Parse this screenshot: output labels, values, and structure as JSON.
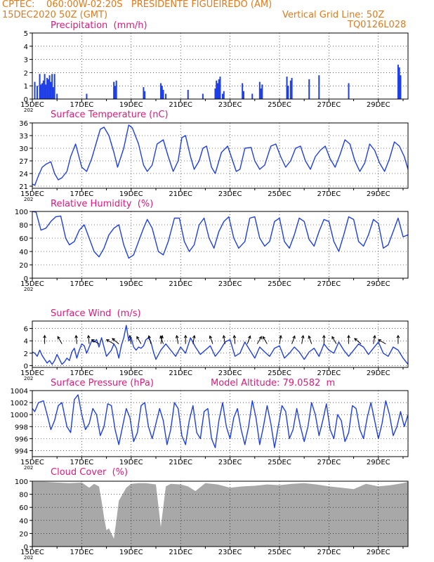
{
  "header": {
    "line1": "CPTEC:    060:00W-02:20S   PRESIDENTE FIGUEIREDO (AM)",
    "line2_left": "15DEC2020 50Z (GMT)",
    "line2_right": "Vertical Grid Line: 50Z",
    "line3_right": "TQ0126L028"
  },
  "colors": {
    "header": "#e07a1a",
    "panel_title": "#e0197a",
    "line": "#1f3fe6",
    "cloud": "#a8a8a8",
    "arrow": "#000000"
  },
  "x_axis": {
    "ticks": [
      "15DEC",
      "17DEC",
      "19DEC",
      "21DEC",
      "23DEC",
      "25DEC",
      "27DEC",
      "29DEC"
    ],
    "year_fragment": "202",
    "range_days": [
      0,
      15.2
    ]
  },
  "chart_data": [
    {
      "id": "precip",
      "type": "bar",
      "title": "Precipitation  (mm/h)",
      "ylim": [
        0,
        5
      ],
      "yticks": [
        "0",
        "1",
        "2",
        "3",
        "4",
        "5"
      ],
      "x": [
        0.1,
        0.2,
        0.3,
        0.35,
        0.4,
        0.45,
        0.5,
        0.55,
        0.6,
        0.65,
        0.7,
        0.75,
        0.8,
        0.85,
        0.9,
        1.0,
        2.2,
        3.3,
        3.35,
        3.4,
        4.5,
        4.55,
        5.2,
        5.25,
        5.3,
        5.4,
        6.3,
        6.9,
        7.4,
        7.45,
        7.5,
        7.55,
        7.6,
        7.7,
        7.75,
        8.5,
        8.55,
        8.9,
        9.2,
        9.25,
        9.3,
        10.3,
        10.35,
        10.45,
        10.5,
        11.2,
        11.6,
        12.8
      ],
      "values": [
        1.3,
        1.0,
        1.9,
        1.1,
        1.2,
        1.4,
        1.9,
        1.1,
        1.6,
        1.5,
        1.8,
        1.3,
        1.9,
        0.9,
        1.9,
        0.4,
        0.4,
        1.3,
        1.0,
        1.4,
        0.9,
        0.6,
        1.2,
        1.0,
        0.7,
        0.4,
        0.7,
        0.4,
        0.8,
        1.4,
        1.2,
        1.5,
        1.7,
        0.4,
        0.6,
        1.2,
        0.6,
        0.4,
        1.3,
        0.8,
        1.1,
        1.7,
        1.0,
        1.4,
        1.6,
        1.5,
        1.8,
        1.2
      ],
      "values_late": {
        "x": [
          14.8,
          14.85,
          14.9
        ],
        "values": [
          2.6,
          2.4,
          1.8
        ]
      }
    },
    {
      "id": "temp",
      "type": "line",
      "title": "Surface Temperature (nC)",
      "ylim": [
        20.5,
        36
      ],
      "yticks": [
        "21",
        "24",
        "27",
        "30",
        "33",
        "36"
      ],
      "x": [
        0,
        0.1,
        0.25,
        0.4,
        0.55,
        0.75,
        0.9,
        1.05,
        1.2,
        1.4,
        1.55,
        1.75,
        2.0,
        2.2,
        2.4,
        2.6,
        2.75,
        2.9,
        3.1,
        3.3,
        3.45,
        3.7,
        3.9,
        4.05,
        4.3,
        4.5,
        4.65,
        4.85,
        5.05,
        5.3,
        5.5,
        5.7,
        5.9,
        6.05,
        6.2,
        6.4,
        6.55,
        6.75,
        6.9,
        7.05,
        7.25,
        7.4,
        7.65,
        7.9,
        8.05,
        8.25,
        8.4,
        8.6,
        8.85,
        9.0,
        9.2,
        9.4,
        9.65,
        9.85,
        10.05,
        10.25,
        10.45,
        10.65,
        10.85,
        11.05,
        11.25,
        11.45,
        11.65,
        11.85,
        12.05,
        12.25,
        12.45,
        12.65,
        12.85,
        13.05,
        13.25,
        13.45,
        13.65,
        13.85,
        14.05,
        14.25,
        14.45,
        14.65,
        14.85,
        15.05,
        15.2
      ],
      "values": [
        21.5,
        21.2,
        23.5,
        25.5,
        26.2,
        26.8,
        24.0,
        22.5,
        23.0,
        24.5,
        28.0,
        31.0,
        25.5,
        24.5,
        27.5,
        31.5,
        34.5,
        35.0,
        33.0,
        29.0,
        25.5,
        30.0,
        35.5,
        34.8,
        31.0,
        26.0,
        24.5,
        26.0,
        31.0,
        32.0,
        28.0,
        24.5,
        27.0,
        32.5,
        33.0,
        28.0,
        25.0,
        27.0,
        30.0,
        30.5,
        25.5,
        24.0,
        29.0,
        30.5,
        28.0,
        24.5,
        25.0,
        30.0,
        30.2,
        27.0,
        25.0,
        26.0,
        30.5,
        31.0,
        28.0,
        25.5,
        27.0,
        30.0,
        30.5,
        27.0,
        25.0,
        28.0,
        29.5,
        30.5,
        27.5,
        25.5,
        28.5,
        32.0,
        31.0,
        27.0,
        24.5,
        26.5,
        31.0,
        29.5,
        26.5,
        24.5,
        27.5,
        31.5,
        30.5,
        28.0,
        25.0
      ]
    },
    {
      "id": "rh",
      "type": "line",
      "title": "Relative Humidity  (%)",
      "ylim": [
        0,
        100
      ],
      "yticks": [
        "0",
        "20",
        "40",
        "60",
        "80",
        "100"
      ],
      "x": [
        0,
        0.15,
        0.35,
        0.55,
        0.75,
        0.95,
        1.15,
        1.35,
        1.5,
        1.7,
        1.9,
        2.1,
        2.3,
        2.5,
        2.7,
        2.9,
        3.1,
        3.3,
        3.5,
        3.7,
        3.9,
        4.1,
        4.3,
        4.5,
        4.65,
        4.85,
        5.1,
        5.3,
        5.5,
        5.75,
        5.95,
        6.15,
        6.35,
        6.55,
        6.75,
        6.95,
        7.15,
        7.35,
        7.55,
        7.75,
        7.95,
        8.15,
        8.35,
        8.6,
        8.8,
        9.0,
        9.2,
        9.4,
        9.6,
        9.8,
        10.0,
        10.2,
        10.4,
        10.6,
        10.8,
        11.0,
        11.2,
        11.4,
        11.6,
        11.8,
        12.0,
        12.2,
        12.4,
        12.6,
        12.8,
        13.0,
        13.2,
        13.4,
        13.6,
        13.8,
        14.0,
        14.2,
        14.4,
        14.6,
        14.8,
        15.0,
        15.2
      ],
      "values": [
        100,
        99,
        72,
        75,
        85,
        92,
        93,
        60,
        50,
        55,
        72,
        80,
        60,
        40,
        32,
        45,
        65,
        75,
        80,
        50,
        30,
        35,
        55,
        75,
        88,
        75,
        40,
        35,
        55,
        90,
        90,
        55,
        40,
        50,
        80,
        90,
        60,
        45,
        70,
        85,
        92,
        60,
        45,
        55,
        90,
        92,
        60,
        48,
        55,
        85,
        90,
        55,
        45,
        65,
        90,
        85,
        58,
        48,
        70,
        88,
        85,
        55,
        40,
        65,
        92,
        88,
        55,
        48,
        65,
        88,
        82,
        45,
        50,
        70,
        90,
        62,
        65
      ]
    },
    {
      "id": "wind",
      "type": "line",
      "title": "Surface Wind  (m/s)",
      "ylim": [
        -0.3,
        7.2
      ],
      "yticks": [
        "0",
        "2",
        "4",
        "6"
      ],
      "x": [
        0,
        0.1,
        0.2,
        0.3,
        0.4,
        0.5,
        0.6,
        0.7,
        0.8,
        0.9,
        1.0,
        1.1,
        1.2,
        1.3,
        1.4,
        1.5,
        1.6,
        1.7,
        1.8,
        1.9,
        2.0,
        2.1,
        2.2,
        2.3,
        2.4,
        2.5,
        2.6,
        2.7,
        2.8,
        2.9,
        3.0,
        3.1,
        3.2,
        3.3,
        3.4,
        3.5,
        3.6,
        3.7,
        3.8,
        3.9,
        4.0,
        4.1,
        4.2,
        4.3,
        4.4,
        4.5,
        4.6,
        4.7,
        4.8,
        4.9,
        5.0,
        5.2,
        5.4,
        5.6,
        5.8,
        6.0,
        6.2,
        6.4,
        6.6,
        6.8,
        7.0,
        7.2,
        7.4,
        7.6,
        7.8,
        8.0,
        8.2,
        8.4,
        8.6,
        8.8,
        9.0,
        9.2,
        9.4,
        9.6,
        9.8,
        10.0,
        10.2,
        10.4,
        10.6,
        10.8,
        11.0,
        11.2,
        11.4,
        11.6,
        11.8,
        12.0,
        12.2,
        12.4,
        12.6,
        12.8,
        13.0,
        13.2,
        13.4,
        13.6,
        13.8,
        14.0,
        14.2,
        14.4,
        14.6,
        14.8,
        15.0,
        15.2
      ],
      "values": [
        2.2,
        2.0,
        1.5,
        2.5,
        1.6,
        1.0,
        0.4,
        0.8,
        0.2,
        0.8,
        1.8,
        1.0,
        0.2,
        0.6,
        1.2,
        0.8,
        2.2,
        2.8,
        1.2,
        2.5,
        3.5,
        3.2,
        2.0,
        3.0,
        4.0,
        3.8,
        4.2,
        3.0,
        4.5,
        3.0,
        1.5,
        2.0,
        2.5,
        3.5,
        2.8,
        1.2,
        3.2,
        4.5,
        6.5,
        4.0,
        4.5,
        3.0,
        2.5,
        3.0,
        2.8,
        3.2,
        4.2,
        4.5,
        3.8,
        2.2,
        1.0,
        2.5,
        3.5,
        2.5,
        1.5,
        3.0,
        2.0,
        4.5,
        3.0,
        1.8,
        2.5,
        3.2,
        1.5,
        2.5,
        3.8,
        4.2,
        1.5,
        2.0,
        3.8,
        2.5,
        1.2,
        3.0,
        2.2,
        1.5,
        2.8,
        3.2,
        1.2,
        2.0,
        3.0,
        2.2,
        1.0,
        2.2,
        2.8,
        1.5,
        3.5,
        2.5,
        2.0,
        3.8,
        2.5,
        1.5,
        2.5,
        3.5,
        3.0,
        1.8,
        2.8,
        3.8,
        2.0,
        1.5,
        3.0,
        2.5,
        1.2,
        0.2
      ],
      "arrows": [
        {
          "x": 0.5,
          "dir": -90
        },
        {
          "x": 1.2,
          "dir": -120
        },
        {
          "x": 1.8,
          "dir": -95
        },
        {
          "x": 2.3,
          "dir": -95
        },
        {
          "x": 2.7,
          "dir": -150
        },
        {
          "x": 3.3,
          "dir": -150
        },
        {
          "x": 3.5,
          "dir": -140
        },
        {
          "x": 4.0,
          "dir": -100
        },
        {
          "x": 4.4,
          "dir": -120
        },
        {
          "x": 4.8,
          "dir": -105
        },
        {
          "x": 5.2,
          "dir": -80
        },
        {
          "x": 5.3,
          "dir": -110
        },
        {
          "x": 5.9,
          "dir": -100
        },
        {
          "x": 6.2,
          "dir": -90
        },
        {
          "x": 6.5,
          "dir": -80
        },
        {
          "x": 7.3,
          "dir": -110
        },
        {
          "x": 7.8,
          "dir": -100
        },
        {
          "x": 8.2,
          "dir": -95
        },
        {
          "x": 8.7,
          "dir": -70
        },
        {
          "x": 9.1,
          "dir": -60
        },
        {
          "x": 9.5,
          "dir": -120
        },
        {
          "x": 10.0,
          "dir": -80
        },
        {
          "x": 10.5,
          "dir": -70
        },
        {
          "x": 10.9,
          "dir": -80
        },
        {
          "x": 11.3,
          "dir": -110
        },
        {
          "x": 11.8,
          "dir": -90
        },
        {
          "x": 12.3,
          "dir": -120
        },
        {
          "x": 12.8,
          "dir": -90
        },
        {
          "x": 13.3,
          "dir": -140
        },
        {
          "x": 13.8,
          "dir": -80
        },
        {
          "x": 14.3,
          "dir": -150
        },
        {
          "x": 14.8,
          "dir": -90
        }
      ]
    },
    {
      "id": "pres",
      "type": "line",
      "title": "Surface Pressure (hPa)",
      "extra": "Model Altitude: 79.0582  m",
      "ylim": [
        993,
        1004
      ],
      "yticks": [
        "994",
        "996",
        "998",
        "1000",
        "1002",
        "1004"
      ],
      "x": [
        0,
        0.1,
        0.25,
        0.45,
        0.6,
        0.75,
        0.9,
        1.05,
        1.2,
        1.4,
        1.55,
        1.7,
        1.85,
        2.0,
        2.15,
        2.3,
        2.45,
        2.6,
        2.75,
        2.9,
        3.05,
        3.2,
        3.35,
        3.5,
        3.65,
        3.8,
        3.95,
        4.1,
        4.25,
        4.4,
        4.55,
        4.7,
        4.85,
        5.0,
        5.15,
        5.3,
        5.45,
        5.6,
        5.75,
        5.9,
        6.05,
        6.2,
        6.35,
        6.5,
        6.65,
        6.8,
        6.95,
        7.1,
        7.25,
        7.4,
        7.55,
        7.7,
        7.85,
        8.0,
        8.15,
        8.3,
        8.45,
        8.6,
        8.75,
        8.9,
        9.05,
        9.2,
        9.35,
        9.5,
        9.65,
        9.8,
        9.95,
        10.1,
        10.25,
        10.4,
        10.55,
        10.7,
        10.85,
        11.0,
        11.15,
        11.3,
        11.45,
        11.6,
        11.75,
        11.9,
        12.05,
        12.2,
        12.35,
        12.5,
        12.65,
        12.8,
        12.95,
        13.1,
        13.25,
        13.4,
        13.55,
        13.7,
        13.85,
        14.0,
        14.15,
        14.3,
        14.45,
        14.6,
        14.75,
        14.9,
        15.05,
        15.2
      ],
      "values": [
        1001,
        1000.5,
        1002,
        1002.3,
        1000,
        997.5,
        999,
        1001.5,
        1002,
        998,
        997,
        1002.5,
        1003.3,
        1000,
        997.5,
        998.5,
        1001,
        1000,
        996.5,
        998,
        1001.8,
        1001.5,
        997.5,
        995,
        998,
        1001,
        999.5,
        995.5,
        997,
        1001.5,
        1002,
        998,
        996,
        998.5,
        1001,
        999,
        995,
        997.5,
        1002,
        1001,
        996.5,
        995,
        999,
        1001.5,
        997,
        996,
        1000.5,
        1001,
        996,
        994.5,
        999,
        1002,
        998,
        996,
        999.5,
        1001,
        997.5,
        995,
        998,
        1002.3,
        999.5,
        995,
        998,
        1001.5,
        998.5,
        994.5,
        998,
        1001.5,
        1000.5,
        996,
        997.5,
        1001,
        998,
        995.5,
        998,
        1002,
        1000,
        996.5,
        999,
        1001.8,
        997.5,
        996,
        1000,
        999,
        995.5,
        997,
        1001.5,
        1001,
        997.5,
        996,
        999.5,
        1002,
        999,
        996,
        998.5,
        1002.3,
        1000,
        996.5,
        998,
        1000.5,
        998,
        1000
      ]
    },
    {
      "id": "cloud",
      "type": "area",
      "title": "Cloud Cover  (%)",
      "ylim": [
        0,
        100
      ],
      "yticks": [
        "0",
        "20",
        "40",
        "60",
        "80",
        "100"
      ],
      "x": [
        0,
        0.5,
        1.0,
        1.5,
        2.0,
        2.3,
        2.5,
        2.7,
        2.8,
        2.9,
        3.0,
        3.1,
        3.2,
        3.3,
        3.4,
        3.5,
        3.8,
        4.0,
        4.3,
        4.6,
        5.0,
        5.2,
        5.4,
        5.6,
        6.0,
        6.3,
        6.6,
        7.0,
        7.5,
        8.0,
        8.5,
        9.0,
        9.5,
        10.0,
        10.5,
        11.0,
        11.5,
        12.0,
        12.5,
        13.0,
        13.5,
        14.0,
        14.5,
        15.0,
        15.2
      ],
      "values": [
        99,
        99,
        98,
        97,
        98,
        90,
        96,
        92,
        70,
        45,
        25,
        28,
        20,
        12,
        40,
        70,
        90,
        96,
        97,
        97,
        95,
        30,
        92,
        96,
        95,
        92,
        85,
        97,
        95,
        90,
        92,
        93,
        95,
        94,
        96,
        97,
        95,
        92,
        90,
        88,
        96,
        92,
        94,
        97,
        99
      ]
    }
  ]
}
